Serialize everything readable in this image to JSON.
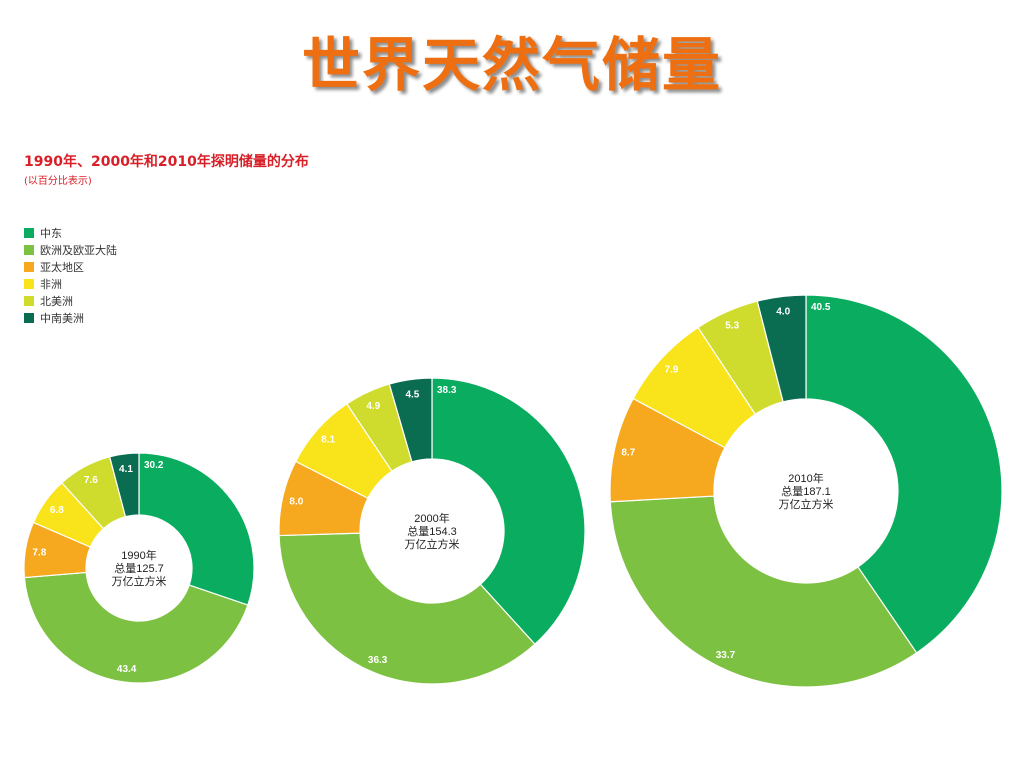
{
  "slide_title": "世界天然气储量",
  "chart_data": {
    "type": "donut",
    "title": "1990年、2000年和2010年探明储量的分布",
    "subtitle": "(以百分比表示)",
    "series": [
      {
        "name": "中东",
        "color": "#0aad5f"
      },
      {
        "name": "欧洲及欧亚大陆",
        "color": "#7dc142"
      },
      {
        "name": "亚太地区",
        "color": "#f6a81f"
      },
      {
        "name": "非洲",
        "color": "#f9e31b"
      },
      {
        "name": "北美洲",
        "color": "#cfdc2d"
      },
      {
        "name": "中南美洲",
        "color": "#0a6d52"
      }
    ],
    "charts": [
      {
        "year_label": "1990年",
        "total_label": "总量125.7",
        "unit_label": "万亿立方米",
        "total": 125.7,
        "values": [
          30.2,
          43.4,
          7.8,
          6.8,
          7.6,
          4.1
        ]
      },
      {
        "year_label": "2000年",
        "total_label": "总量154.3",
        "unit_label": "万亿立方米",
        "total": 154.3,
        "values": [
          38.3,
          36.3,
          8.0,
          8.1,
          4.9,
          4.5
        ]
      },
      {
        "year_label": "2010年",
        "total_label": "总量187.1",
        "unit_label": "万亿立方米",
        "total": 187.1,
        "values": [
          40.5,
          33.7,
          8.7,
          7.9,
          5.3,
          4.0
        ]
      }
    ]
  }
}
